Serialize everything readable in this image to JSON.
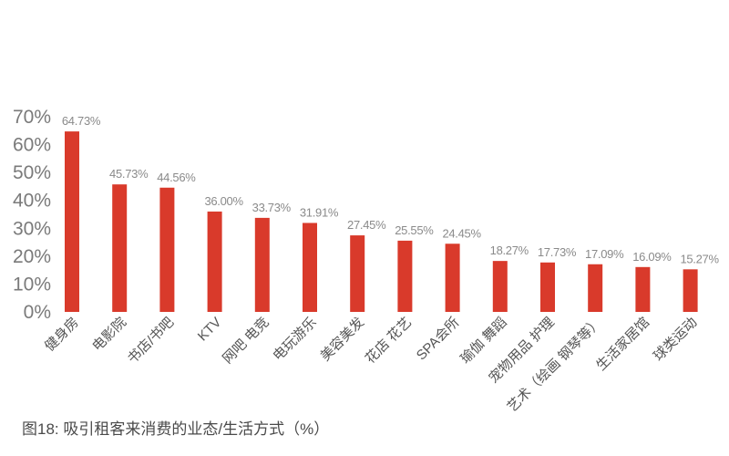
{
  "caption": "图18: 吸引租客来消费的业态/生活方式（%）",
  "chart_data": {
    "type": "bar",
    "title": "",
    "xlabel": "",
    "ylabel": "",
    "ylim": [
      0,
      70
    ],
    "yticks": [
      "0%",
      "10%",
      "20%",
      "30%",
      "40%",
      "50%",
      "60%",
      "70%"
    ],
    "grid": false,
    "legend": "none",
    "bar_color": "#d93a2b",
    "categories": [
      "健身房",
      "电影院",
      "书店/书吧",
      "KTV",
      "网吧 电竞",
      "电玩游乐",
      "美容美发",
      "花店 花艺",
      "SPA会所",
      "瑜伽 舞蹈",
      "宠物用品 护理",
      "艺术（绘画 钢琴等）",
      "生活家居馆",
      "球类运动"
    ],
    "values": [
      64.73,
      45.73,
      44.56,
      36.0,
      33.73,
      31.91,
      27.45,
      25.55,
      24.45,
      18.27,
      17.73,
      17.09,
      16.09,
      15.27
    ],
    "data_labels": [
      "64.73%",
      "45.73%",
      "44.56%",
      "36.00%",
      "33.73%",
      "31.91%",
      "27.45%",
      "25.55%",
      "24.45%",
      "18.27%",
      "17.73%",
      "17.09%",
      "16.09%",
      "15.27%"
    ]
  }
}
